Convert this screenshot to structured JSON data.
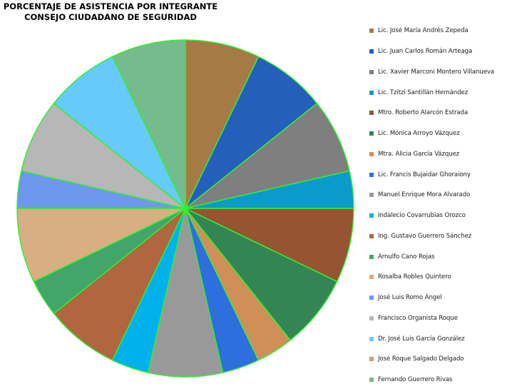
{
  "chart_data": {
    "type": "pie",
    "title_lines": [
      "PORCENTAJE DE ASISTENCIA POR INTEGRANTE",
      "CONSEJO CIUDADANO DE SEGURIDAD"
    ],
    "slice_border_color": "#33ee33",
    "start_angle_deg": 0,
    "direction": "clockwise",
    "legend_position": "right",
    "series": [
      {
        "name": "Lic. José María Andrés Zepeda",
        "value": 8,
        "color": "#a67a45"
      },
      {
        "name": "Lic. Juan Carlos Román Arteaga",
        "value": 8,
        "color": "#235fbb"
      },
      {
        "name": "Lic. Xavier Marconi Montero Villanueva",
        "value": 8,
        "color": "#7f7f7f"
      },
      {
        "name": "Lic. Tzitzi Santillán Hernández",
        "value": 4,
        "color": "#0b9bcb"
      },
      {
        "name": "Mtro. Roberto Alarcón Estrada",
        "value": 8,
        "color": "#975433"
      },
      {
        "name": "Lic. Mónica Arroyo Vázquez",
        "value": 8,
        "color": "#338653"
      },
      {
        "name": "Mtra. Alicia García Vázquez",
        "value": 4,
        "color": "#d08f56"
      },
      {
        "name": "Lic. Francis Bujaidar Ghoraiony",
        "value": 4,
        "color": "#2c6fdd"
      },
      {
        "name": "Manuel Enrique Mora Alvarado",
        "value": 8,
        "color": "#999999"
      },
      {
        "name": "Indalecio Covarrubias Orozco",
        "value": 4,
        "color": "#00b1ec"
      },
      {
        "name": "Ing. Gustavo Guerrero Sánchez",
        "value": 8,
        "color": "#b0663e"
      },
      {
        "name": "Arnulfo Cano Rojas",
        "value": 4,
        "color": "#42a66a"
      },
      {
        "name": "Rosalba Robles Quintero",
        "value": 8,
        "color": "#d9ae82"
      },
      {
        "name": "José Luis Romo Ángel",
        "value": 4,
        "color": "#6e98ee"
      },
      {
        "name": "Francisco Organista Roque",
        "value": 8,
        "color": "#b7b7b7"
      },
      {
        "name": "Dr. José Luis García González",
        "value": 8,
        "color": "#66cbfb"
      },
      {
        "name": "José Roque Salgado Delgado",
        "value": 0,
        "color": "#da9870"
      },
      {
        "name": "Fernando Guerrero Rivas",
        "value": 8,
        "color": "#76bb8b"
      }
    ]
  }
}
